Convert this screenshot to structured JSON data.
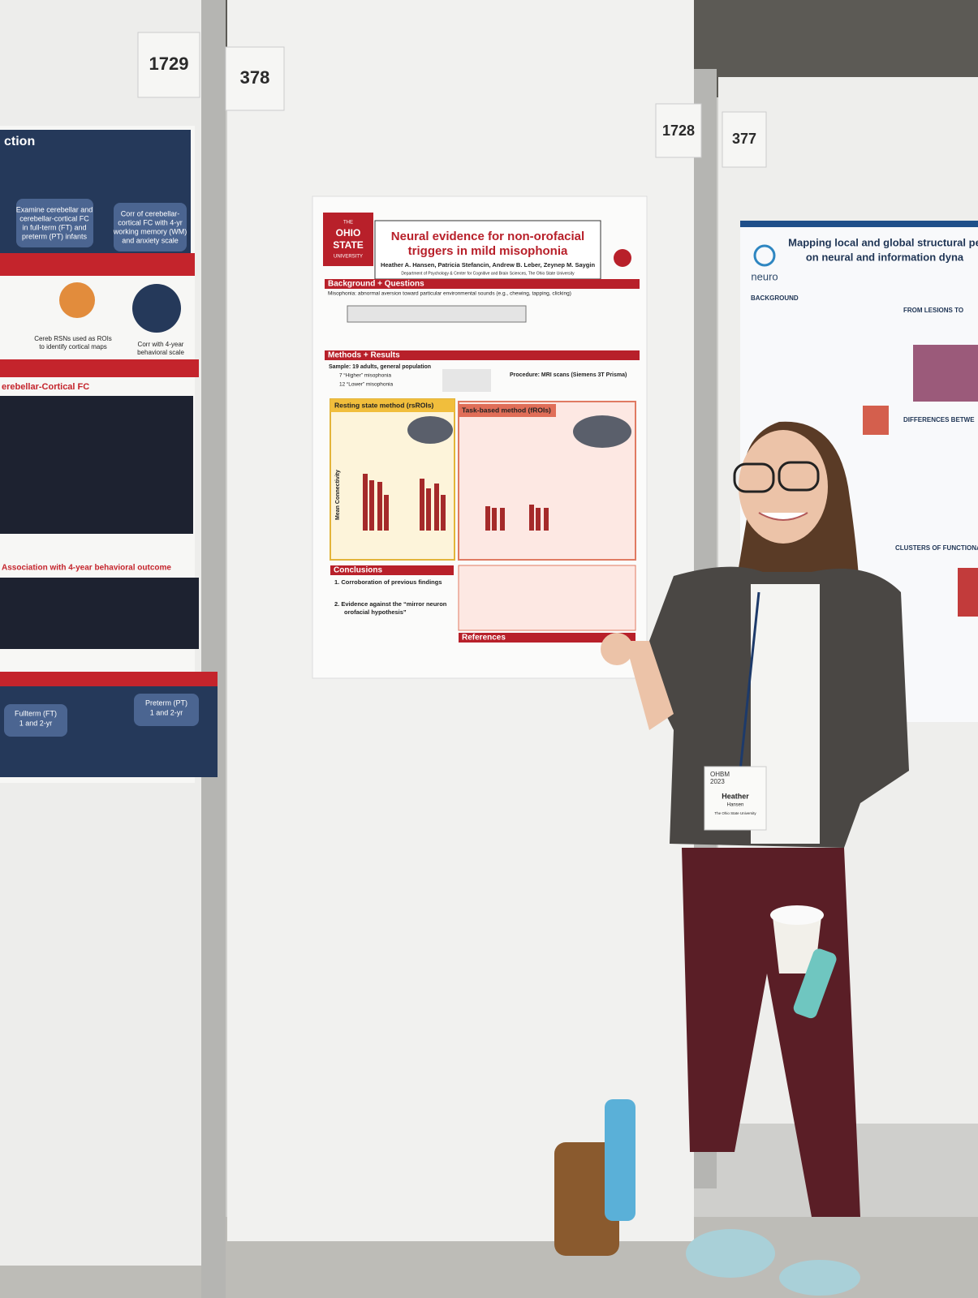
{
  "boards": [
    {
      "number": "1729"
    },
    {
      "number": "378"
    },
    {
      "number": "1728"
    },
    {
      "number": "377"
    }
  ],
  "center_poster": {
    "university": [
      "THE",
      "OHIO",
      "STATE",
      "UNIVERSITY"
    ],
    "title_lines": [
      "Neural evidence for non-orofacial",
      "triggers in mild misophonia"
    ],
    "authors": "Heather A. Hansen, Patricia Stefancin, Andrew B. Leber, Zeynep M. Saygin",
    "affiliation": "Department of Psychology & Center for Cognitive and Brain Sciences, The Ohio State University",
    "sections": [
      "Background + Questions",
      "Methods + Results",
      "Resting state method (rsROIs)",
      "Task-based method (fROIs)",
      "Conclusions",
      "References"
    ],
    "background": "Misophonia: abnormal aversion toward particular environmental sounds (e.g., chewing, tapping, clicking)",
    "sample": [
      "Sample: 19 adults, general population",
      "7 “Higher” misophonia",
      "12 “Lower” misophonia"
    ],
    "procedure": "Procedure: MRI scans (Siemens 3T Prisma)",
    "conclusions": [
      "1. Corroboration of previous findings",
      "2. Evidence against the “mirror neuron",
      "orofacial hypothesis”"
    ],
    "axis_label": "Mean Connectivity"
  },
  "right_poster": {
    "title_lines": [
      "Mapping local and global structural pe",
      "on neural and information dyna"
    ],
    "logo": "neuro",
    "headings": [
      "BACKGROUND",
      "FROM LESIONS TO",
      "DIFFERENCES BETWE",
      "CLUSTERS OF FUNCTIONA"
    ]
  },
  "left_poster": {
    "heading": "ction",
    "box1": [
      "Examine cerebellar and",
      "cerebellar-cortical FC",
      "in full-term (FT) and",
      "preterm (PT) infants"
    ],
    "box2": [
      "Corr of cerebellar-",
      "cortical FC with 4-yr",
      "working memory (WM)",
      "and anxiety scale"
    ],
    "caption1": [
      "Cereb RSNs used as ROIs",
      "to identify cortical maps"
    ],
    "caption2": [
      "Corr with 4-year",
      "behavioral scale"
    ],
    "section1": "erebellar-Cortical FC",
    "section2": "Association with 4-year behavioral outcome",
    "box3": [
      "Fullterm (FT)",
      "1 and 2-yr"
    ],
    "box4": [
      "Preterm (PT)",
      "1 and 2-yr"
    ]
  },
  "badge": {
    "event": [
      "OHBM",
      "2023"
    ],
    "first_name": "Heather",
    "last_name": "Hansen",
    "affiliation": "The Ohio State University"
  }
}
